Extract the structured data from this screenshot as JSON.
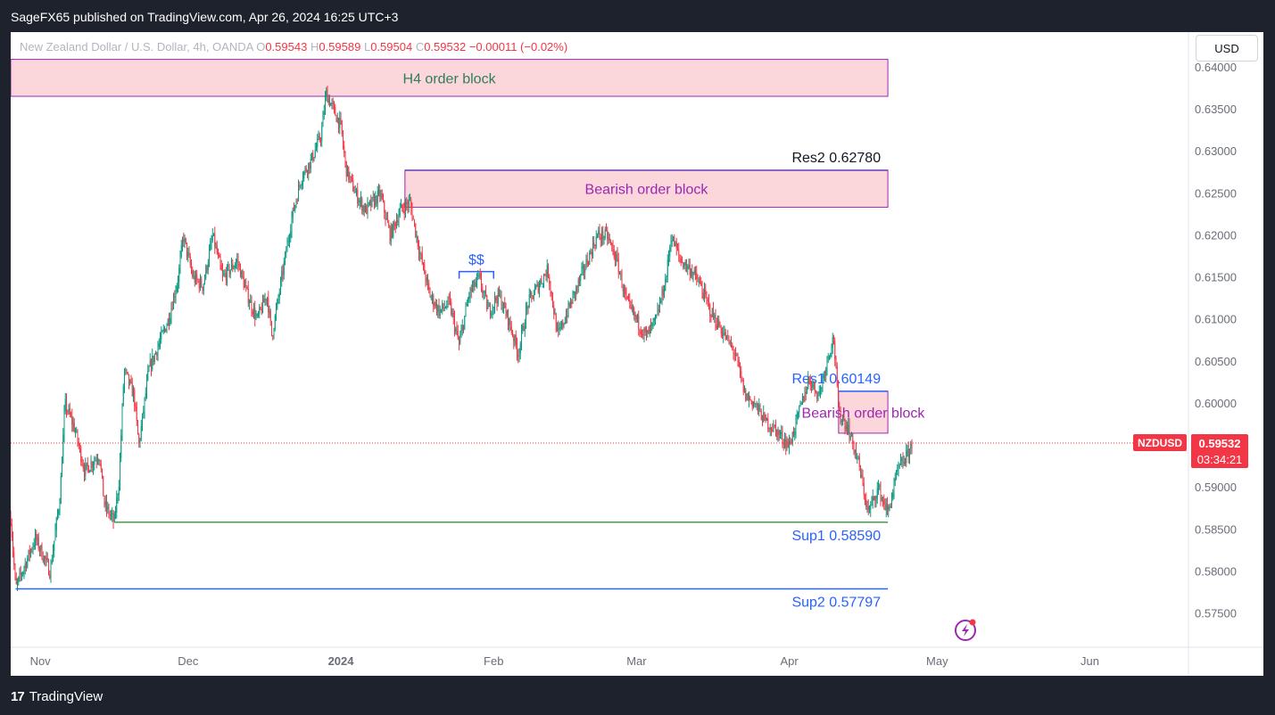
{
  "header": {
    "title": "SageFX65 published on TradingView.com, Apr 26, 2024 16:25 UTC+3"
  },
  "legend": {
    "symbol": "New Zealand Dollar / U.S. Dollar, 4h, OANDA",
    "o_label": "O",
    "o": "0.59543",
    "h_label": "H",
    "h": "0.59589",
    "l_label": "L",
    "l": "0.59504",
    "c_label": "C",
    "c": "0.59532",
    "change": "−0.00011 (−0.02%)"
  },
  "currency": "USD",
  "footer": {
    "brand": "TradingView",
    "logo_text": "17"
  },
  "price_tag": {
    "symbol": "NZDUSD",
    "price": "0.59532",
    "countdown": "03:34:21"
  },
  "colors": {
    "up": "#089981",
    "down": "#f23645",
    "zone_fill": "#fbd7dc",
    "zone_border": "#9c27b0",
    "res_line": "#2962ff",
    "sup1_line": "#43a047",
    "tag_red": "#f23645",
    "label_purple": "#9c27b0",
    "label_blue": "#2962ff",
    "label_green": "#2e7d5b"
  },
  "chart_data": {
    "type": "candlestick",
    "title": "New Zealand Dollar / U.S. Dollar, 4h, OANDA",
    "xlabel": "",
    "ylabel": "",
    "ylim": [
      0.5725,
      0.641
    ],
    "y_ticks": [
      "0.64000",
      "0.63500",
      "0.63000",
      "0.62500",
      "0.62000",
      "0.61500",
      "0.61000",
      "0.60500",
      "0.60000",
      "0.59500",
      "0.59000",
      "0.58500",
      "0.58000",
      "0.57500"
    ],
    "x_ticks": [
      {
        "date": "2023-11-01",
        "label": "Nov"
      },
      {
        "date": "2023-12-01",
        "label": "Dec"
      },
      {
        "date": "2024-01-01",
        "label": "2024",
        "bold": true
      },
      {
        "date": "2024-02-01",
        "label": "Feb"
      },
      {
        "date": "2024-03-01",
        "label": "Mar"
      },
      {
        "date": "2024-04-01",
        "label": "Apr"
      },
      {
        "date": "2024-05-01",
        "label": "May"
      },
      {
        "date": "2024-06-01",
        "label": "Jun"
      }
    ],
    "x_range": [
      "2023-10-26",
      "2024-06-21"
    ],
    "price_path": [
      [
        "2023-10-26",
        0.5865
      ],
      [
        "2023-10-27",
        0.578
      ],
      [
        "2023-10-31",
        0.584
      ],
      [
        "2023-11-03",
        0.58
      ],
      [
        "2023-11-05",
        0.589
      ],
      [
        "2023-11-06",
        0.6
      ],
      [
        "2023-11-08",
        0.597
      ],
      [
        "2023-11-10",
        0.592
      ],
      [
        "2023-11-13",
        0.594
      ],
      [
        "2023-11-14",
        0.588
      ],
      [
        "2023-11-16",
        0.5859
      ],
      [
        "2023-11-17",
        0.591
      ],
      [
        "2023-11-18",
        0.604
      ],
      [
        "2023-11-20",
        0.601
      ],
      [
        "2023-11-21",
        0.595
      ],
      [
        "2023-11-23",
        0.604
      ],
      [
        "2023-11-25",
        0.607
      ],
      [
        "2023-11-27",
        0.61
      ],
      [
        "2023-11-29",
        0.615
      ],
      [
        "2023-11-30",
        0.62
      ],
      [
        "2023-12-02",
        0.615
      ],
      [
        "2023-12-04",
        0.614
      ],
      [
        "2023-12-06",
        0.62
      ],
      [
        "2023-12-08",
        0.615
      ],
      [
        "2023-12-11",
        0.617
      ],
      [
        "2023-12-13",
        0.613
      ],
      [
        "2023-12-15",
        0.61
      ],
      [
        "2023-12-17",
        0.613
      ],
      [
        "2023-12-18",
        0.608
      ],
      [
        "2023-12-20",
        0.615
      ],
      [
        "2023-12-22",
        0.622
      ],
      [
        "2023-12-24",
        0.627
      ],
      [
        "2023-12-26",
        0.629
      ],
      [
        "2023-12-28",
        0.632
      ],
      [
        "2023-12-29",
        0.637
      ],
      [
        "2024-01-01",
        0.633
      ],
      [
        "2024-01-02",
        0.628
      ],
      [
        "2024-01-04",
        0.625
      ],
      [
        "2024-01-06",
        0.623
      ],
      [
        "2024-01-09",
        0.625
      ],
      [
        "2024-01-11",
        0.62
      ],
      [
        "2024-01-13",
        0.623
      ],
      [
        "2024-01-15",
        0.624
      ],
      [
        "2024-01-17",
        0.618
      ],
      [
        "2024-01-19",
        0.613
      ],
      [
        "2024-01-21",
        0.611
      ],
      [
        "2024-01-23",
        0.612
      ],
      [
        "2024-01-25",
        0.607
      ],
      [
        "2024-01-27",
        0.613
      ],
      [
        "2024-01-29",
        0.615
      ],
      [
        "2024-01-31",
        0.611
      ],
      [
        "2024-02-02",
        0.613
      ],
      [
        "2024-02-04",
        0.61
      ],
      [
        "2024-02-06",
        0.606
      ],
      [
        "2024-02-08",
        0.612
      ],
      [
        "2024-02-10",
        0.614
      ],
      [
        "2024-02-12",
        0.616
      ],
      [
        "2024-02-14",
        0.608
      ],
      [
        "2024-02-16",
        0.611
      ],
      [
        "2024-02-18",
        0.614
      ],
      [
        "2024-02-20",
        0.617
      ],
      [
        "2024-02-22",
        0.62
      ],
      [
        "2024-02-24",
        0.62
      ],
      [
        "2024-02-26",
        0.617
      ],
      [
        "2024-02-28",
        0.612
      ],
      [
        "2024-03-01",
        0.61
      ],
      [
        "2024-03-03",
        0.608
      ],
      [
        "2024-03-05",
        0.61
      ],
      [
        "2024-03-07",
        0.615
      ],
      [
        "2024-03-08",
        0.62
      ],
      [
        "2024-03-10",
        0.617
      ],
      [
        "2024-03-12",
        0.616
      ],
      [
        "2024-03-14",
        0.614
      ],
      [
        "2024-03-16",
        0.611
      ],
      [
        "2024-03-19",
        0.608
      ],
      [
        "2024-03-21",
        0.606
      ],
      [
        "2024-03-23",
        0.601
      ],
      [
        "2024-03-25",
        0.6
      ],
      [
        "2024-03-27",
        0.598
      ],
      [
        "2024-03-29",
        0.597
      ],
      [
        "2024-04-01",
        0.595
      ],
      [
        "2024-04-03",
        0.599
      ],
      [
        "2024-04-05",
        0.603
      ],
      [
        "2024-04-07",
        0.601
      ],
      [
        "2024-04-09",
        0.606
      ],
      [
        "2024-04-10",
        0.608
      ],
      [
        "2024-04-11",
        0.599
      ],
      [
        "2024-04-13",
        0.597
      ],
      [
        "2024-04-15",
        0.593
      ],
      [
        "2024-04-17",
        0.587
      ],
      [
        "2024-04-19",
        0.59
      ],
      [
        "2024-04-21",
        0.587
      ],
      [
        "2024-04-23",
        0.592
      ],
      [
        "2024-04-25",
        0.594
      ],
      [
        "2024-04-26",
        0.5953
      ]
    ],
    "zones": [
      {
        "label": "H4 order block",
        "from": "2023-10-26",
        "to": "2024-04-21",
        "top": 0.641,
        "bottom": 0.6366,
        "label_color": "#2e7d5b"
      },
      {
        "label": "Bearish order block",
        "from": "2024-01-14",
        "to": "2024-04-21",
        "top": 0.6278,
        "bottom": 0.6234,
        "label_color": "#9c27b0"
      },
      {
        "label": "Bearish order block",
        "from": "2024-04-11",
        "to": "2024-04-21",
        "top": 0.60149,
        "bottom": 0.5965,
        "label_color": "#9c27b0"
      }
    ],
    "levels": [
      {
        "label": "Res2 0.62780",
        "value": 0.6278,
        "from": "2024-01-14",
        "to": "2024-04-21",
        "color": "#673ab7",
        "text_color": "#131722"
      },
      {
        "label": "Res1 0.60149",
        "value": 0.60149,
        "from": "2024-04-11",
        "to": "2024-04-21",
        "color": "#2962ff",
        "text_color": "#2962ff"
      },
      {
        "label": "Sup1 0.58590",
        "value": 0.5859,
        "from": "2023-11-16",
        "to": "2024-04-21",
        "color": "#43a047",
        "text_color": "#2962ff"
      },
      {
        "label": "Sup2  0.57797",
        "value": 0.57797,
        "from": "2023-10-27",
        "to": "2024-04-21",
        "color": "#2962ff",
        "text_color": "#2962ff"
      }
    ],
    "marker": {
      "label": "$$",
      "from": "2024-01-25",
      "to": "2024-02-01",
      "value": 0.615
    },
    "last_price": 0.59532
  }
}
